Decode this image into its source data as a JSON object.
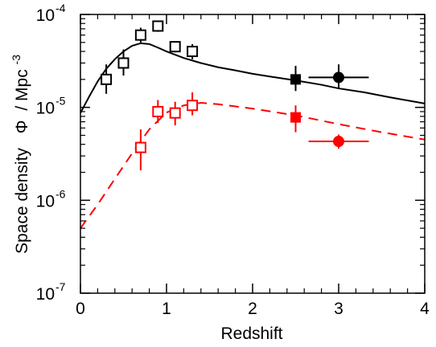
{
  "chart_data": {
    "type": "scatter",
    "xlabel": "Redshift",
    "ylabel": {
      "text": "Space density",
      "symbol": "Φ",
      "unit": "/ Mpc",
      "unit_exp": "-3"
    },
    "xlim": [
      0,
      4
    ],
    "ylim": [
      1e-07,
      0.0001
    ],
    "yscale": "log",
    "grid": false,
    "x_ticks": [
      {
        "value": 0,
        "label": "0"
      },
      {
        "value": 1,
        "label": "1"
      },
      {
        "value": 2,
        "label": "2"
      },
      {
        "value": 3,
        "label": "3"
      },
      {
        "value": 4,
        "label": "4"
      }
    ],
    "y_ticks": [
      {
        "value": 1e-07,
        "base": "10",
        "exp": "-7"
      },
      {
        "value": 1e-06,
        "base": "10",
        "exp": "-6"
      },
      {
        "value": 1e-05,
        "base": "10",
        "exp": "-5"
      },
      {
        "value": 0.0001,
        "base": "10",
        "exp": "-4"
      }
    ],
    "series": [
      {
        "color": "#000000",
        "line_style": "solid",
        "model_curve": [
          [
            0,
            8.7e-06
          ],
          [
            0.1,
            1.3e-05
          ],
          [
            0.2,
            1.9e-05
          ],
          [
            0.3,
            2.6e-05
          ],
          [
            0.4,
            3.3e-05
          ],
          [
            0.5,
            4e-05
          ],
          [
            0.6,
            4.6e-05
          ],
          [
            0.7,
            4.9e-05
          ],
          [
            0.8,
            4.8e-05
          ],
          [
            0.9,
            4.4e-05
          ],
          [
            1.0,
            4e-05
          ],
          [
            1.2,
            3.4e-05
          ],
          [
            1.4,
            3e-05
          ],
          [
            1.6,
            2.7e-05
          ],
          [
            1.8,
            2.5e-05
          ],
          [
            2.0,
            2.3e-05
          ],
          [
            2.2,
            2.15e-05
          ],
          [
            2.5,
            1.95e-05
          ],
          [
            2.8,
            1.75e-05
          ],
          [
            3.0,
            1.6e-05
          ],
          [
            3.3,
            1.45e-05
          ],
          [
            3.6,
            1.28e-05
          ],
          [
            4.0,
            1.1e-05
          ]
        ],
        "points": [
          {
            "x": 0.3,
            "y": 2e-05,
            "marker": "square-open",
            "y_lo": 1.4e-05,
            "y_hi": 2.9e-05
          },
          {
            "x": 0.5,
            "y": 3e-05,
            "marker": "square-open",
            "y_lo": 2.2e-05,
            "y_hi": 4.2e-05
          },
          {
            "x": 0.7,
            "y": 6e-05,
            "marker": "square-open",
            "y_lo": 5e-05,
            "y_hi": 7.2e-05
          },
          {
            "x": 0.9,
            "y": 7.5e-05,
            "marker": "square-open",
            "y_lo": 6.5e-05,
            "y_hi": 8.5e-05
          },
          {
            "x": 1.1,
            "y": 4.5e-05,
            "marker": "square-open",
            "y_lo": 3.9e-05,
            "y_hi": 5.1e-05
          },
          {
            "x": 1.3,
            "y": 4e-05,
            "marker": "square-open",
            "y_lo": 3.3e-05,
            "y_hi": 4.8e-05
          },
          {
            "x": 2.5,
            "y": 2e-05,
            "marker": "square-filled",
            "y_lo": 1.5e-05,
            "y_hi": 2.8e-05
          },
          {
            "x": 3.0,
            "y": 2.1e-05,
            "marker": "circle-filled",
            "y_lo": 1.6e-05,
            "y_hi": 2.9e-05,
            "x_lo": 2.65,
            "x_hi": 3.35
          }
        ]
      },
      {
        "color": "#ff0000",
        "line_style": "dashed",
        "model_curve": [
          [
            0,
            5e-07
          ],
          [
            0.2,
            9e-07
          ],
          [
            0.4,
            1.7e-06
          ],
          [
            0.6,
            3.2e-06
          ],
          [
            0.8,
            5.8e-06
          ],
          [
            1.0,
            8.8e-06
          ],
          [
            1.2,
            1.05e-05
          ],
          [
            1.4,
            1.12e-05
          ],
          [
            1.6,
            1.08e-05
          ],
          [
            2.0,
            9.7e-06
          ],
          [
            2.5,
            8.2e-06
          ],
          [
            3.0,
            6.6e-06
          ],
          [
            3.5,
            5.4e-06
          ],
          [
            4.0,
            4.5e-06
          ]
        ],
        "points": [
          {
            "x": 0.7,
            "y": 3.7e-06,
            "marker": "square-open",
            "y_lo": 2.1e-06,
            "y_hi": 5.8e-06
          },
          {
            "x": 0.9,
            "y": 9e-06,
            "marker": "square-open",
            "y_lo": 6.8e-06,
            "y_hi": 1.2e-05
          },
          {
            "x": 1.1,
            "y": 8.7e-06,
            "marker": "square-open",
            "y_lo": 6.4e-06,
            "y_hi": 1.15e-05
          },
          {
            "x": 1.3,
            "y": 1.05e-05,
            "marker": "square-open",
            "y_lo": 8.2e-06,
            "y_hi": 1.45e-05
          },
          {
            "x": 2.5,
            "y": 7.8e-06,
            "marker": "square-filled",
            "y_lo": 5.4e-06,
            "y_hi": 1.05e-05
          },
          {
            "x": 3.0,
            "y": 4.3e-06,
            "marker": "circle-filled",
            "y_lo": 3.6e-06,
            "y_hi": 5.1e-06,
            "x_lo": 2.65,
            "x_hi": 3.35
          }
        ]
      }
    ]
  }
}
